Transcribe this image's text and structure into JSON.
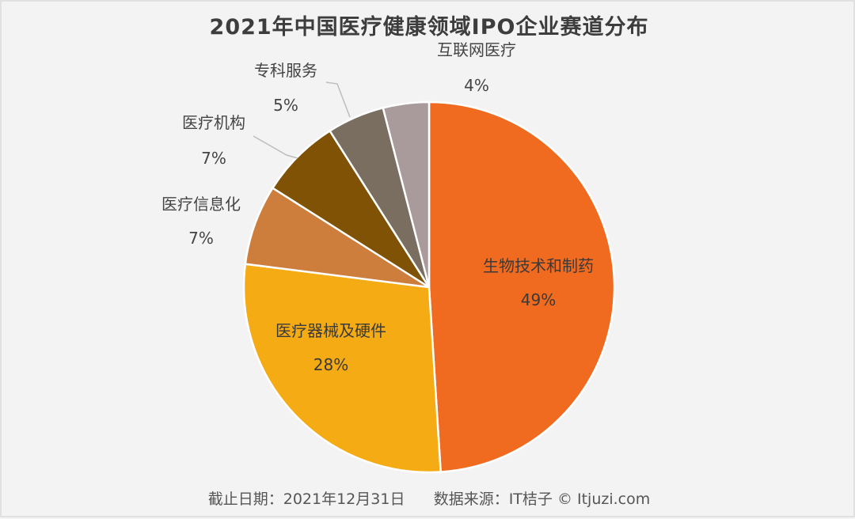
{
  "chart_data": {
    "type": "pie",
    "title": "2021年中国医疗健康领域IPO企业赛道分布",
    "slices": [
      {
        "label": "生物技术和制药",
        "percent_label": "49%",
        "value": 49,
        "color": "#f06a1f"
      },
      {
        "label": "医疗器械及硬件",
        "percent_label": "28%",
        "value": 28,
        "color": "#f5ab13"
      },
      {
        "label": "医疗信息化",
        "percent_label": "7%",
        "value": 7,
        "color": "#cd7d3c"
      },
      {
        "label": "医疗机构",
        "percent_label": "7%",
        "value": 7,
        "color": "#7f5205"
      },
      {
        "label": "专科服务",
        "percent_label": "5%",
        "value": 5,
        "color": "#7a6e60"
      },
      {
        "label": "互联网医疗",
        "percent_label": "4%",
        "value": 4,
        "color": "#a99b9b"
      }
    ]
  },
  "footer": {
    "date": "截止日期：2021年12月31日",
    "source": "数据来源：IT桔子 © Itjuzi.com"
  }
}
